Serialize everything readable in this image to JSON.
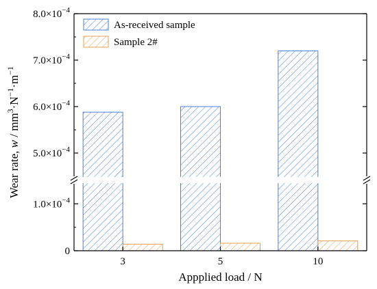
{
  "chart_data": {
    "type": "bar",
    "categories": [
      "3",
      "5",
      "10"
    ],
    "series": [
      {
        "name": "As-received sample",
        "values": [
          0.000588,
          0.0006,
          0.00072
        ],
        "color": "#4a7fd6",
        "pattern": "diagonal-hatch"
      },
      {
        "name": "Sample 2#",
        "values": [
          1.4e-05,
          1.6e-05,
          2.1e-05
        ],
        "color": "#e0a050",
        "pattern": "diagonal-hatch"
      }
    ],
    "xlabel": "Appplied load / N",
    "ylabel": {
      "prefix": "Wear rate, ",
      "symbol": "w",
      "middle": " / mm",
      "e1": "3",
      "s1": "·N",
      "e2": "−1",
      "s2": "·m",
      "e3": "−1"
    },
    "y_axis_break": {
      "lower_range": [
        0,
        0.00015
      ],
      "upper_range": [
        0.00045,
        0.0008
      ]
    },
    "y_ticks": [
      {
        "value": 0,
        "mantissa": "0",
        "exponent": ""
      },
      {
        "value": 0.0001,
        "mantissa": "1.0×10",
        "exponent": "−4"
      },
      {
        "value": 0.0005,
        "mantissa": "5.0×10",
        "exponent": "−4"
      },
      {
        "value": 0.0006,
        "mantissa": "6.0×10",
        "exponent": "−4"
      },
      {
        "value": 0.0007,
        "mantissa": "7.0×10",
        "exponent": "−4"
      },
      {
        "value": 0.0008,
        "mantissa": "8.0×10",
        "exponent": "−4"
      }
    ],
    "legend": {
      "position": "top-left"
    },
    "grid": false
  }
}
